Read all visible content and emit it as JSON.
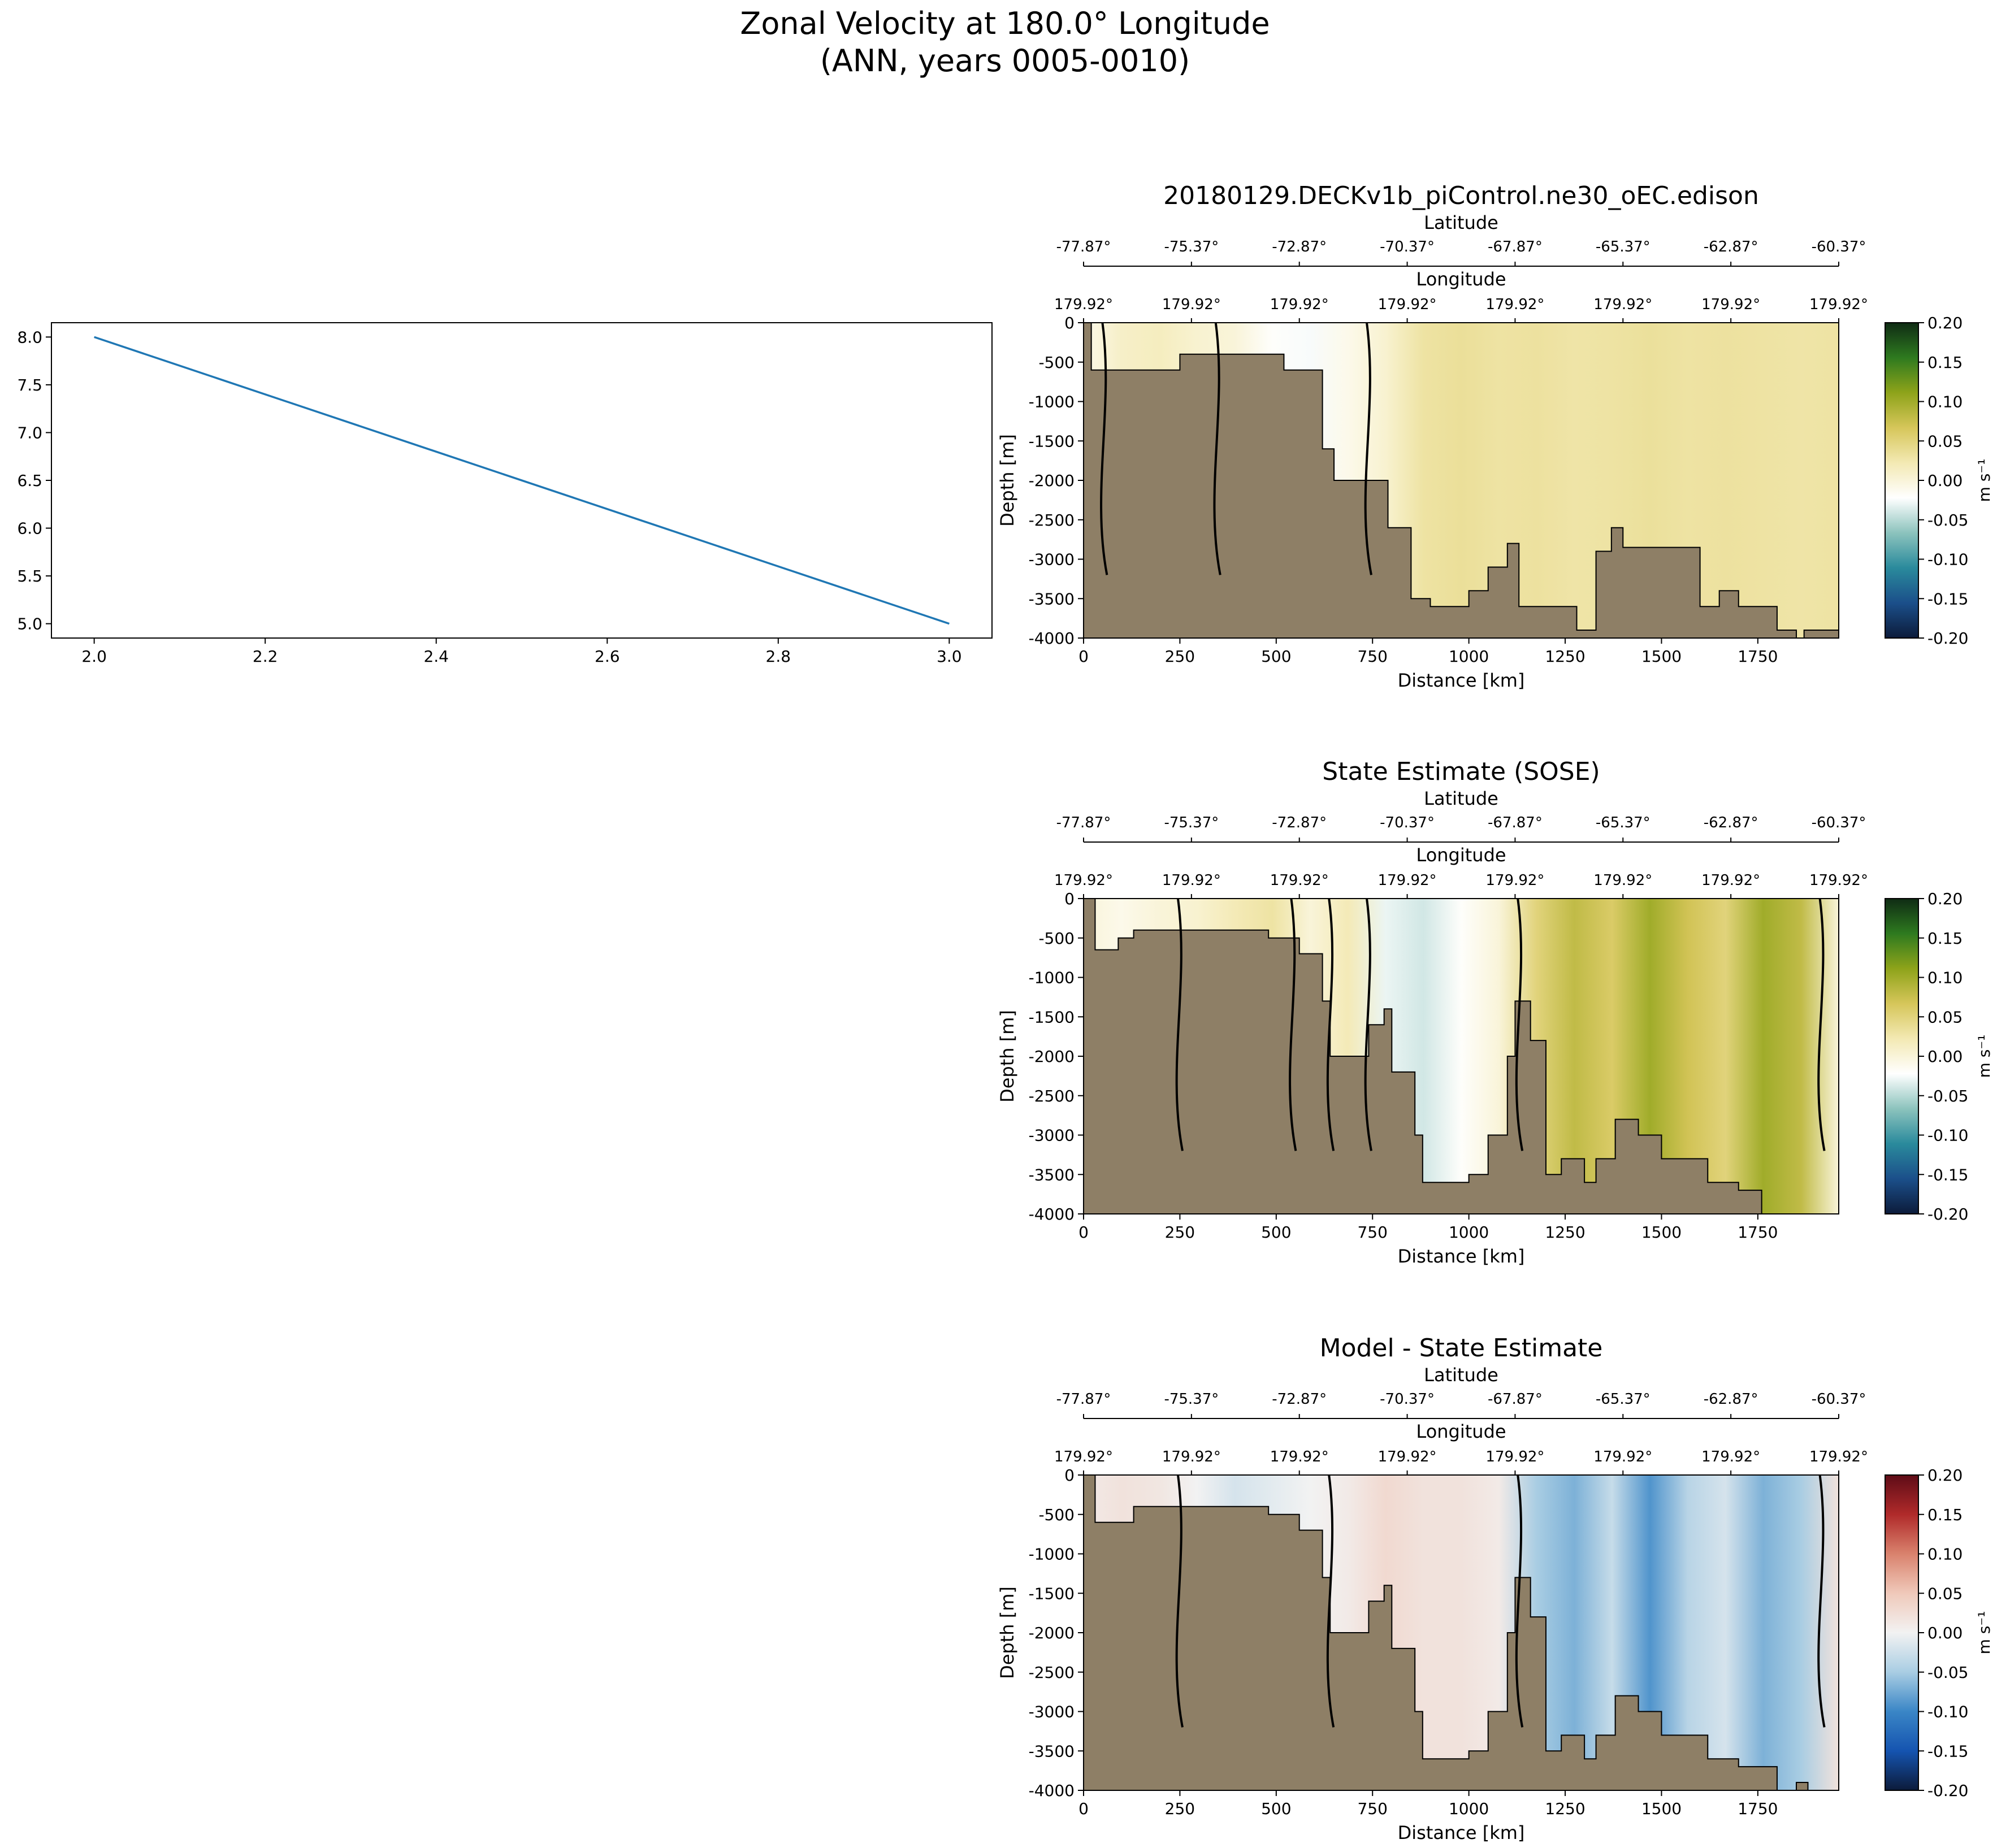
{
  "figure": {
    "title_line1": "Zonal Velocity at 180.0° Longitude",
    "title_line2": "(ANN, years 0005-0010)"
  },
  "colors": {
    "line": "#1f77b4",
    "topo": "#8e7f66",
    "field_cmap": [
      "#0c1b3a",
      "#1b4f8a",
      "#2a8a9c",
      "#8cc3bd",
      "#ffffff",
      "#f3e9b3",
      "#d6c65a",
      "#8ea31a",
      "#2e7a1f",
      "#0f2b14"
    ],
    "diff_cmap": [
      "#0c1b3a",
      "#1554b0",
      "#3a86c6",
      "#a9cde3",
      "#f2f2f2",
      "#f0c9ba",
      "#d9826d",
      "#b02a2a",
      "#5e0c17"
    ]
  },
  "chart_data": [
    {
      "type": "line",
      "name": "dummy-line",
      "x": [
        2.0,
        3.0
      ],
      "y": [
        8.0,
        5.0
      ],
      "xlim": [
        1.95,
        3.05
      ],
      "ylim": [
        4.85,
        8.15
      ],
      "xticks": [
        "2.0",
        "2.2",
        "2.4",
        "2.6",
        "2.8",
        "3.0"
      ],
      "yticks": [
        "5.0",
        "5.5",
        "6.0",
        "6.5",
        "7.0",
        "7.5",
        "8.0"
      ]
    },
    {
      "type": "heatmap",
      "name": "model",
      "title": "20180129.DECKv1b_piControl.ne30_oEC.edison",
      "xlabel": "Distance [km]",
      "ylabel": "Depth [m]",
      "xlim": [
        0,
        1960
      ],
      "ylim": [
        -4000,
        0
      ],
      "xticks": [
        "0",
        "250",
        "500",
        "750",
        "1000",
        "1250",
        "1500",
        "1750"
      ],
      "yticks": [
        "0",
        "-500",
        "-1000",
        "-1500",
        "-2000",
        "-2500",
        "-3000",
        "-3500",
        "-4000"
      ],
      "lat_label": "Latitude",
      "lat_ticks": [
        "-77.87°",
        "-75.37°",
        "-72.87°",
        "-70.37°",
        "-67.87°",
        "-65.37°",
        "-62.87°",
        "-60.37°"
      ],
      "lon_label": "Longitude",
      "lon_ticks": [
        "179.92°",
        "179.92°",
        "179.92°",
        "179.92°",
        "179.92°",
        "179.92°",
        "179.92°",
        "179.92°"
      ],
      "colorbar_label": "m s⁻¹",
      "colorbar_ticks": [
        "0.20",
        "0.15",
        "0.10",
        "0.05",
        "0.00",
        "-0.05",
        "-0.10",
        "-0.15",
        "-0.20"
      ],
      "field_columns_ms": [
        -0.01,
        0.01,
        0.015,
        0.005,
        0.0,
        -0.02,
        -0.025,
        -0.01,
        0.005,
        0.03,
        0.035,
        0.03,
        0.032,
        0.028,
        0.03,
        0.034,
        0.03,
        0.032,
        0.03,
        0.028,
        0.03
      ],
      "bathymetry_m": [
        [
          0,
          0
        ],
        [
          20,
          -600
        ],
        [
          250,
          -400
        ],
        [
          350,
          -400
        ],
        [
          460,
          -400
        ],
        [
          520,
          -600
        ],
        [
          620,
          -1600
        ],
        [
          650,
          -2000
        ],
        [
          760,
          -2000
        ],
        [
          790,
          -2600
        ],
        [
          850,
          -3500
        ],
        [
          900,
          -3600
        ],
        [
          1000,
          -3400
        ],
        [
          1050,
          -3100
        ],
        [
          1100,
          -2800
        ],
        [
          1130,
          -3600
        ],
        [
          1200,
          -3600
        ],
        [
          1280,
          -3900
        ],
        [
          1330,
          -2900
        ],
        [
          1370,
          -2600
        ],
        [
          1400,
          -2850
        ],
        [
          1480,
          -2850
        ],
        [
          1550,
          -2850
        ],
        [
          1600,
          -3600
        ],
        [
          1650,
          -3400
        ],
        [
          1700,
          -3600
        ],
        [
          1800,
          -3900
        ],
        [
          1850,
          -4000
        ],
        [
          1870,
          -3900
        ],
        [
          1960,
          -4000
        ]
      ]
    },
    {
      "type": "heatmap",
      "name": "sose",
      "title": "State Estimate (SOSE)",
      "xlabel": "Distance [km]",
      "ylabel": "Depth [m]",
      "xlim": [
        0,
        1960
      ],
      "ylim": [
        -4000,
        0
      ],
      "xticks": [
        "0",
        "250",
        "500",
        "750",
        "1000",
        "1250",
        "1500",
        "1750"
      ],
      "yticks": [
        "0",
        "-500",
        "-1000",
        "-1500",
        "-2000",
        "-2500",
        "-3000",
        "-3500",
        "-4000"
      ],
      "lat_label": "Latitude",
      "lat_ticks": [
        "-77.87°",
        "-75.37°",
        "-72.87°",
        "-70.37°",
        "-67.87°",
        "-65.37°",
        "-62.87°",
        "-60.37°"
      ],
      "lon_label": "Longitude",
      "lon_ticks": [
        "179.92°",
        "179.92°",
        "179.92°",
        "179.92°",
        "179.92°",
        "179.92°",
        "179.92°",
        "179.92°"
      ],
      "colorbar_label": "m s⁻¹",
      "colorbar_ticks": [
        "0.20",
        "0.15",
        "0.10",
        "0.05",
        "0.00",
        "-0.05",
        "-0.10",
        "-0.15",
        "-0.20"
      ],
      "field_columns_ms": [
        0.0,
        -0.01,
        0.0,
        0.005,
        0.02,
        0.03,
        0.0,
        0.02,
        -0.03,
        -0.04,
        -0.02,
        0.0,
        0.05,
        0.08,
        0.06,
        0.1,
        0.07,
        0.05,
        0.1,
        0.08,
        0.0
      ],
      "bathymetry_m": [
        [
          0,
          0
        ],
        [
          30,
          -650
        ],
        [
          90,
          -500
        ],
        [
          130,
          -400
        ],
        [
          300,
          -400
        ],
        [
          440,
          -400
        ],
        [
          480,
          -500
        ],
        [
          560,
          -700
        ],
        [
          620,
          -1300
        ],
        [
          640,
          -2000
        ],
        [
          700,
          -2000
        ],
        [
          740,
          -1600
        ],
        [
          780,
          -1400
        ],
        [
          800,
          -2200
        ],
        [
          860,
          -3000
        ],
        [
          880,
          -3600
        ],
        [
          950,
          -3600
        ],
        [
          1000,
          -3500
        ],
        [
          1050,
          -3000
        ],
        [
          1100,
          -2000
        ],
        [
          1120,
          -1300
        ],
        [
          1160,
          -1800
        ],
        [
          1200,
          -3500
        ],
        [
          1240,
          -3300
        ],
        [
          1300,
          -3600
        ],
        [
          1330,
          -3300
        ],
        [
          1380,
          -2800
        ],
        [
          1440,
          -3000
        ],
        [
          1500,
          -3300
        ],
        [
          1560,
          -3300
        ],
        [
          1620,
          -3600
        ],
        [
          1700,
          -3700
        ],
        [
          1760,
          -4000
        ],
        [
          1960,
          -4000
        ]
      ]
    },
    {
      "type": "heatmap",
      "name": "difference",
      "title": "Model - State Estimate",
      "xlabel": "Distance [km]",
      "ylabel": "Depth [m]",
      "xlim": [
        0,
        1960
      ],
      "ylim": [
        -4000,
        0
      ],
      "xticks": [
        "0",
        "250",
        "500",
        "750",
        "1000",
        "1250",
        "1500",
        "1750"
      ],
      "yticks": [
        "0",
        "-500",
        "-1000",
        "-1500",
        "-2000",
        "-2500",
        "-3000",
        "-3500",
        "-4000"
      ],
      "lat_label": "Latitude",
      "lat_ticks": [
        "-77.87°",
        "-75.37°",
        "-72.87°",
        "-70.37°",
        "-67.87°",
        "-65.37°",
        "-62.87°",
        "-60.37°"
      ],
      "lon_label": "Longitude",
      "lon_ticks": [
        "179.92°",
        "179.92°",
        "179.92°",
        "179.92°",
        "179.92°",
        "179.92°",
        "179.92°",
        "179.92°"
      ],
      "colorbar_label": "m s⁻¹",
      "colorbar_ticks": [
        "0.20",
        "0.15",
        "0.10",
        "0.05",
        "0.00",
        "-0.05",
        "-0.10",
        "-0.15",
        "-0.20"
      ],
      "field_columns_ms": [
        0.01,
        0.02,
        0.015,
        0.0,
        -0.02,
        -0.01,
        0.0,
        0.01,
        0.03,
        0.02,
        0.02,
        0.01,
        -0.05,
        -0.07,
        -0.03,
        -0.09,
        -0.04,
        -0.02,
        -0.07,
        -0.05,
        0.02
      ],
      "bathymetry_m": [
        [
          0,
          0
        ],
        [
          30,
          -600
        ],
        [
          130,
          -400
        ],
        [
          440,
          -400
        ],
        [
          480,
          -500
        ],
        [
          560,
          -700
        ],
        [
          620,
          -1300
        ],
        [
          640,
          -2000
        ],
        [
          700,
          -2000
        ],
        [
          740,
          -1600
        ],
        [
          780,
          -1400
        ],
        [
          800,
          -2200
        ],
        [
          860,
          -3000
        ],
        [
          880,
          -3600
        ],
        [
          950,
          -3600
        ],
        [
          1000,
          -3500
        ],
        [
          1050,
          -3000
        ],
        [
          1100,
          -2000
        ],
        [
          1120,
          -1300
        ],
        [
          1160,
          -1800
        ],
        [
          1200,
          -3500
        ],
        [
          1240,
          -3300
        ],
        [
          1300,
          -3600
        ],
        [
          1330,
          -3300
        ],
        [
          1380,
          -2800
        ],
        [
          1440,
          -3000
        ],
        [
          1500,
          -3300
        ],
        [
          1560,
          -3300
        ],
        [
          1620,
          -3600
        ],
        [
          1700,
          -3700
        ],
        [
          1800,
          -4000
        ],
        [
          1850,
          -3900
        ],
        [
          1880,
          -4000
        ],
        [
          1960,
          -4000
        ]
      ]
    }
  ]
}
